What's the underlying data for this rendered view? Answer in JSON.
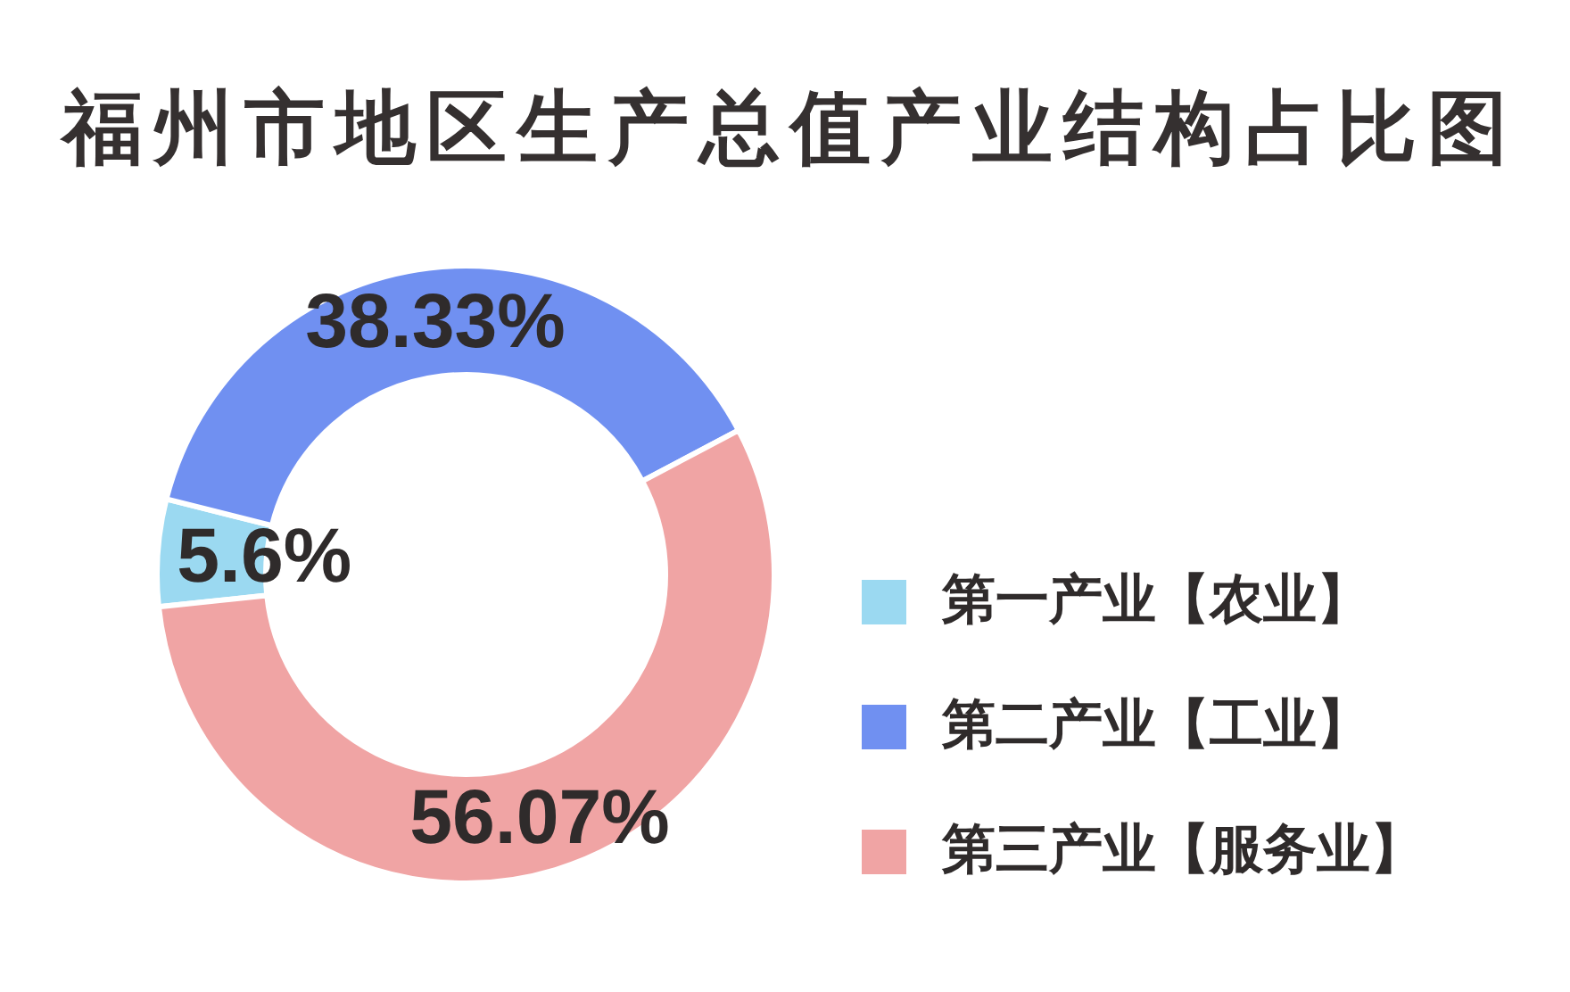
{
  "chart_data": {
    "type": "donut",
    "title": "福州市地区生产总值产业结构占比图",
    "categories": [
      "第一产业【农业】",
      "第二产业【工业】",
      "第三产业【服务业】"
    ],
    "values": [
      5.6,
      38.33,
      56.07
    ],
    "value_labels": [
      "5.6%",
      "38.33%",
      "56.07%"
    ],
    "colors": [
      "#9bd9f1",
      "#7090f1",
      "#f0a4a4"
    ],
    "legend": "right"
  }
}
